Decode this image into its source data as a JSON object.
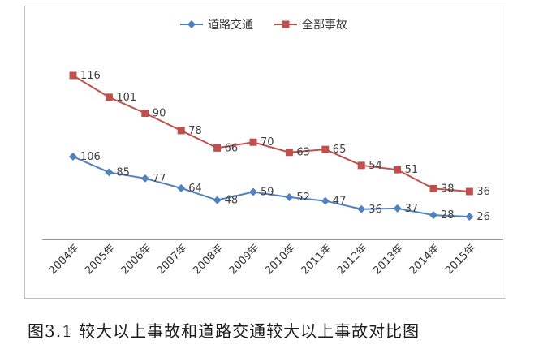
{
  "page": {
    "caption": "图3.1 较大以上事故和道路交通较大以上事故对比图"
  },
  "chart_data": {
    "type": "line",
    "title": "",
    "xlabel": "",
    "ylabel": "",
    "y_axis_visible": false,
    "grid": false,
    "data_labels": true,
    "legend_position": "top",
    "categories": [
      "2004年",
      "2005年",
      "2006年",
      "2007年",
      "2008年",
      "2009年",
      "2010年",
      "2011年",
      "2012年",
      "2013年",
      "2014年",
      "2015年"
    ],
    "series": [
      {
        "name": "道路交通",
        "color": "#4f81bd",
        "marker": "diamond",
        "values": [
          106,
          85,
          77,
          64,
          48,
          59,
          52,
          47,
          36,
          37,
          28,
          26
        ]
      },
      {
        "name": "全部事故",
        "color": "#c0504d",
        "marker": "square",
        "values": [
          116,
          101,
          90,
          78,
          66,
          70,
          63,
          65,
          54,
          51,
          38,
          36
        ]
      }
    ]
  }
}
